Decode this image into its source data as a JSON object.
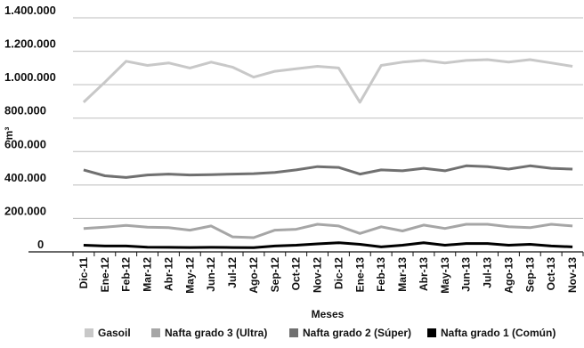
{
  "chart_data": {
    "type": "line",
    "title": "",
    "xlabel": "Meses",
    "ylabel": "m³",
    "ylim": [
      0,
      1400000
    ],
    "y_ticks": [
      "0",
      "200.000",
      "400.000",
      "600.000",
      "800.000",
      "1.000.000",
      "1.200.000",
      "1.400.000"
    ],
    "grid": true,
    "legend_position": "bottom",
    "categories": [
      "Dic-11",
      "Ene-12",
      "Feb-12",
      "Mar-12",
      "Abr-12",
      "May-12",
      "Jun-12",
      "Jul-12",
      "Ago-12",
      "Sep-12",
      "Oct-12",
      "Nov-12",
      "Dic-12",
      "Ene-13",
      "Feb-13",
      "Mar-13",
      "Abr-13",
      "May-13",
      "Jun-13",
      "Jul-13",
      "Ago-13",
      "Sep-13",
      "Oct-13",
      "Nov-13"
    ],
    "series": [
      {
        "name": "Gasoil",
        "color": "#c8c8c8",
        "values": [
          895000,
          1015000,
          1140000,
          1115000,
          1130000,
          1100000,
          1135000,
          1105000,
          1045000,
          1080000,
          1095000,
          1110000,
          1100000,
          895000,
          1115000,
          1135000,
          1145000,
          1130000,
          1145000,
          1150000,
          1135000,
          1150000,
          1130000,
          1110000
        ]
      },
      {
        "name": "Nafta grado 3 (Ultra)",
        "color": "#a6a6a6",
        "values": [
          140000,
          148000,
          158000,
          148000,
          145000,
          130000,
          155000,
          90000,
          85000,
          130000,
          135000,
          165000,
          155000,
          110000,
          150000,
          125000,
          160000,
          140000,
          165000,
          165000,
          150000,
          145000,
          165000,
          155000
        ]
      },
      {
        "name": "Nafta grado 2 (Súper)",
        "color": "#707070",
        "values": [
          490000,
          455000,
          445000,
          460000,
          465000,
          460000,
          462000,
          465000,
          468000,
          475000,
          490000,
          510000,
          505000,
          465000,
          490000,
          485000,
          500000,
          485000,
          515000,
          510000,
          495000,
          515000,
          500000,
          495000
        ]
      },
      {
        "name": "Nafta grado 1 (Común)",
        "color": "#000000",
        "values": [
          40000,
          35000,
          35000,
          28000,
          27000,
          26000,
          27000,
          26000,
          25000,
          35000,
          40000,
          48000,
          55000,
          45000,
          30000,
          40000,
          55000,
          40000,
          50000,
          50000,
          40000,
          45000,
          35000,
          30000
        ]
      }
    ]
  }
}
